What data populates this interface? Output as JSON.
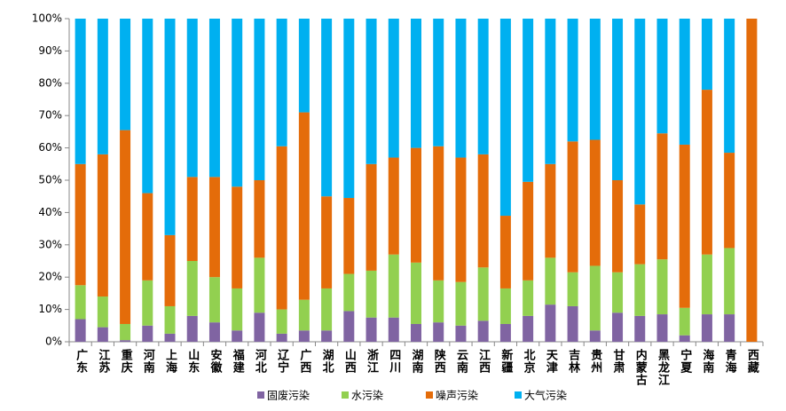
{
  "chart_data": {
    "type": "stacked_bar",
    "categories": [
      "广东",
      "江苏",
      "重庆",
      "河南",
      "上海",
      "山东",
      "安徽",
      "福建",
      "河北",
      "辽宁",
      "广西",
      "湖北",
      "山西",
      "浙江",
      "四川",
      "湖南",
      "陕西",
      "云南",
      "江西",
      "新疆",
      "北京",
      "天津",
      "吉林",
      "贵州",
      "甘肃",
      "内蒙古",
      "黑龙江",
      "宁夏",
      "海南",
      "青海",
      "西藏"
    ],
    "series": [
      {
        "name": "固废污染",
        "color": "#8064a2",
        "values": [
          7,
          4.5,
          0.5,
          5,
          2.5,
          8,
          6,
          3.5,
          9,
          2.5,
          3.5,
          3.5,
          9.5,
          7.5,
          7.5,
          5.5,
          6,
          5,
          6.5,
          5.5,
          8,
          11.5,
          11,
          3.5,
          9,
          8,
          8.5,
          2,
          8.5,
          8.5,
          0
        ]
      },
      {
        "name": "水污染",
        "color": "#92d050",
        "values": [
          10.5,
          9.5,
          5,
          14,
          8.5,
          17,
          14,
          13,
          17,
          7.5,
          9.5,
          13,
          11.5,
          14.5,
          19.5,
          19,
          13,
          13.5,
          16.5,
          11,
          11,
          14.5,
          10.5,
          20,
          12.5,
          16,
          17,
          8.5,
          18.5,
          20.5,
          0
        ]
      },
      {
        "name": "噪声污染",
        "color": "#e46c0a",
        "values": [
          37.5,
          44,
          60,
          27,
          22,
          26,
          31,
          31.5,
          24,
          50.5,
          58,
          28.5,
          23.5,
          33,
          30,
          35.5,
          41.5,
          38.5,
          35,
          22.5,
          30.5,
          29,
          40.5,
          39,
          28.5,
          18.5,
          39,
          50.5,
          51,
          29.5,
          100
        ]
      },
      {
        "name": "大气污染",
        "color": "#00b0f0",
        "values": [
          45,
          42,
          34.5,
          54,
          67,
          49,
          49,
          52,
          50,
          39.5,
          29,
          55,
          55.5,
          45,
          43,
          40,
          39.5,
          43,
          42,
          61,
          50.5,
          45,
          38,
          37.5,
          50,
          57.5,
          35.5,
          39,
          22,
          41.5,
          0
        ]
      }
    ],
    "ylim": [
      0,
      100
    ],
    "yticks": [
      {
        "value": 0,
        "label": "0%"
      },
      {
        "value": 10,
        "label": "10%"
      },
      {
        "value": 20,
        "label": "20%"
      },
      {
        "value": 30,
        "label": "30%"
      },
      {
        "value": 40,
        "label": "40%"
      },
      {
        "value": 50,
        "label": "50%"
      },
      {
        "value": 60,
        "label": "60%"
      },
      {
        "value": 70,
        "label": "70%"
      },
      {
        "value": 80,
        "label": "80%"
      },
      {
        "value": 90,
        "label": "90%"
      },
      {
        "value": 100,
        "label": "100%"
      }
    ],
    "grid": false,
    "legend": "bottom"
  }
}
